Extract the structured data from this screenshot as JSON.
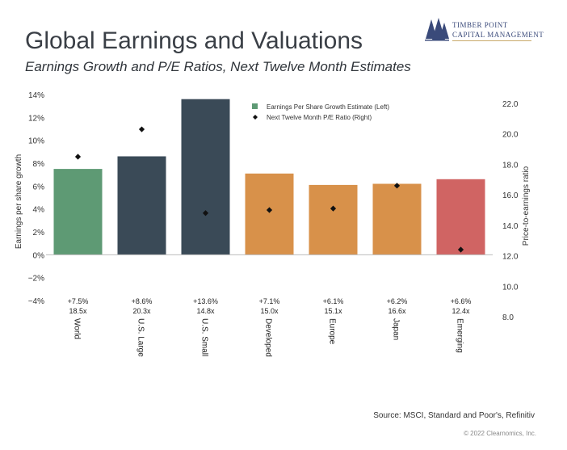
{
  "header": {
    "title": "Global Earnings and Valuations",
    "subtitle": "Earnings Growth and P/E Ratios, Next Twelve Month Estimates"
  },
  "logo": {
    "line1": "TIMBER POINT",
    "line2": "CAPITAL MANAGEMENT",
    "icon": "pine-trees-icon"
  },
  "footer": {
    "source": "Source: MSCI, Standard and Poor's, Refinitiv",
    "copyright": "© 2022 Clearnomics, Inc."
  },
  "chart_data": {
    "type": "bar",
    "categories": [
      "World",
      "U.S. Large",
      "U.S. Small",
      "Developed",
      "Europe",
      "Japan",
      "Emerging"
    ],
    "series": [
      {
        "name": "Earnings Per Share Growth Estimate (Left)",
        "type": "bar",
        "axis": "left",
        "values": [
          7.5,
          8.6,
          13.6,
          7.1,
          6.1,
          6.2,
          6.6
        ]
      },
      {
        "name": "Next Twelve Month P/E Ratio (Right)",
        "type": "scatter",
        "axis": "right",
        "values": [
          18.5,
          20.3,
          14.8,
          15.0,
          15.1,
          16.6,
          12.4
        ]
      }
    ],
    "bar_labels": [
      "+7.5%",
      "+8.6%",
      "+13.6%",
      "+7.1%",
      "+6.1%",
      "+6.2%",
      "+6.6%"
    ],
    "pe_labels": [
      "18.5x",
      "20.3x",
      "14.8x",
      "15.0x",
      "15.1x",
      "16.6x",
      "12.4x"
    ],
    "bar_colors": [
      "#5e9a74",
      "#3a4a57",
      "#3a4a57",
      "#d8914a",
      "#d8914a",
      "#d8914a",
      "#d06463"
    ],
    "legend_colors": {
      "bar": "#5e9a74",
      "marker": "#111111"
    },
    "ylabel": "Earnings per share growth",
    "y2label": "Price-to-earnings ratio",
    "ylim": [
      -4,
      14
    ],
    "y2lim": [
      8,
      22
    ],
    "yticks": [
      -4,
      -2,
      0,
      2,
      4,
      6,
      8,
      10,
      12,
      14
    ],
    "ytick_labels": [
      "−4%",
      "−2%",
      "0%",
      "2%",
      "4%",
      "6%",
      "8%",
      "10%",
      "12%",
      "14%"
    ],
    "y2ticks": [
      8,
      10,
      12,
      14,
      16,
      18,
      20,
      22
    ],
    "y2tick_labels": [
      "8.0",
      "10.0",
      "12.0",
      "14.0",
      "16.0",
      "18.0",
      "20.0",
      "22.0"
    ],
    "legend_position": "top-right",
    "grid": false
  }
}
